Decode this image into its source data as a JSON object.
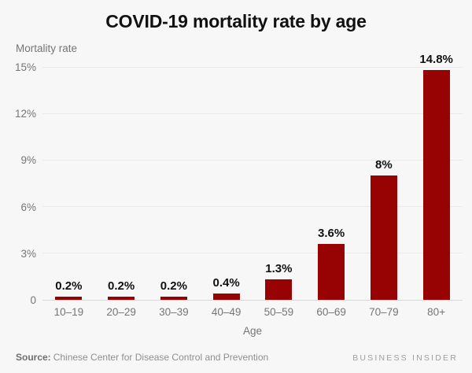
{
  "title": "COVID-19 mortality rate by age",
  "y_axis_title": "Mortality rate",
  "x_axis_title": "Age",
  "footer": {
    "source_label": "Source:",
    "source_text": "Chinese Center for Disease Control and Prevention",
    "brand": "BUSINESS INSIDER"
  },
  "colors": {
    "background": "#f7f7f7",
    "bar": "#970302",
    "grid": "#eaeaea",
    "baseline": "#d9d9d9",
    "axis_text": "#757575",
    "title_text": "#111111",
    "value_label_text": "#111111",
    "source_text": "#8f8f8f",
    "brand_text": "#9e9e9e"
  },
  "chart_data": {
    "type": "bar",
    "title": "COVID-19 mortality rate by age",
    "xlabel": "Age",
    "ylabel": "Mortality rate",
    "categories": [
      "10–19",
      "20–29",
      "30–39",
      "40–49",
      "50–59",
      "60–69",
      "70–79",
      "80+"
    ],
    "values": [
      0.2,
      0.2,
      0.2,
      0.4,
      1.3,
      3.6,
      8,
      14.8
    ],
    "value_labels": [
      "0.2%",
      "0.2%",
      "0.2%",
      "0.4%",
      "1.3%",
      "3.6%",
      "8%",
      "14.8%"
    ],
    "ylim": [
      0,
      15
    ],
    "yticks": [
      0,
      3,
      6,
      9,
      12,
      15
    ],
    "ytick_labels": [
      "0",
      "3%",
      "6%",
      "9%",
      "12%",
      "15%"
    ],
    "grid": true,
    "legend": false,
    "bar_color": "#970302"
  }
}
